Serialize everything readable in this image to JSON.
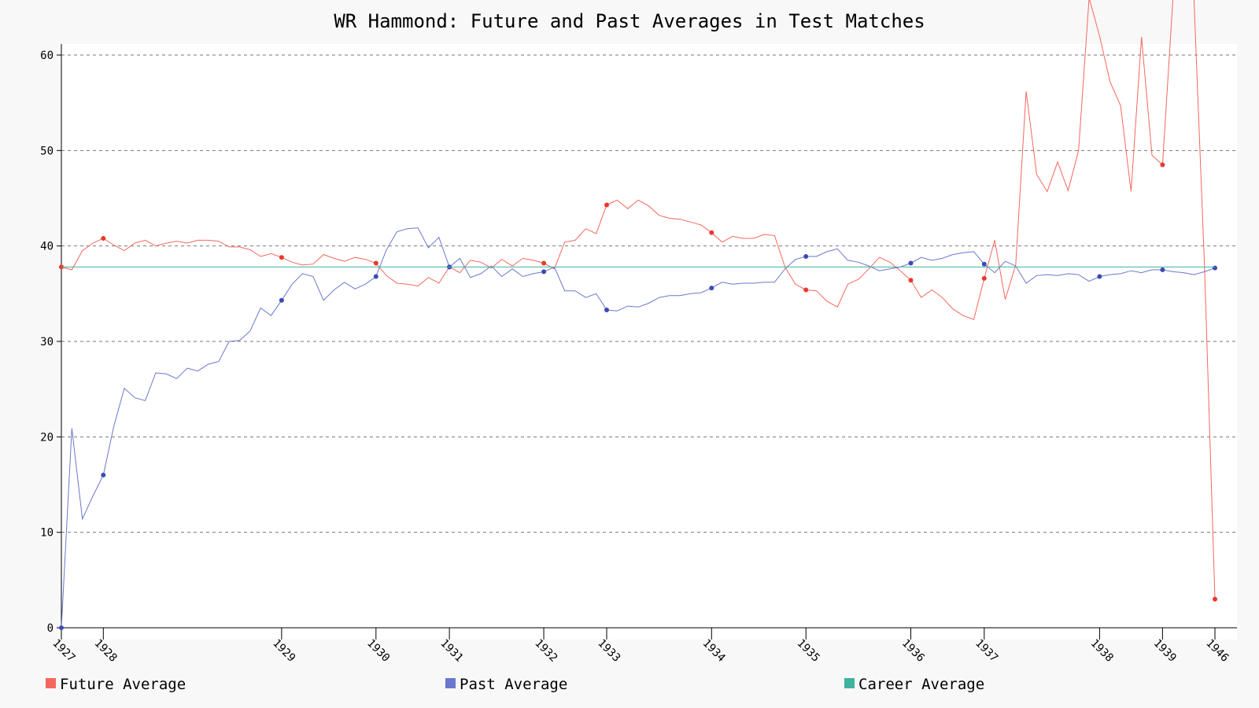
{
  "chart_data": {
    "type": "line",
    "title": "WR Hammond: Future and Past Averages in Test Matches",
    "xlabel": "",
    "ylabel": "",
    "ylim": [
      0,
      61
    ],
    "y_ticks": [
      0,
      10,
      20,
      30,
      40,
      50,
      60
    ],
    "grid": true,
    "legend_position": "bottom",
    "colors": {
      "future": "#f4675f",
      "past": "#6a78cd",
      "career": "#3fb39f"
    },
    "x_tick_labels": [
      {
        "i": 0,
        "label": "1927"
      },
      {
        "i": 4,
        "label": "1928"
      },
      {
        "i": 21,
        "label": "1929"
      },
      {
        "i": 30,
        "label": "1930"
      },
      {
        "i": 37,
        "label": "1931"
      },
      {
        "i": 46,
        "label": "1932"
      },
      {
        "i": 52,
        "label": "1933"
      },
      {
        "i": 62,
        "label": "1934"
      },
      {
        "i": 71,
        "label": "1935"
      },
      {
        "i": 81,
        "label": "1936"
      },
      {
        "i": 88,
        "label": "1937"
      },
      {
        "i": 99,
        "label": "1938"
      },
      {
        "i": 105,
        "label": "1939"
      },
      {
        "i": 110,
        "label": "1946"
      }
    ],
    "series": [
      {
        "name": "Future Average",
        "values": [
          37.8,
          37.5,
          39.5,
          40.3,
          40.8,
          40.1,
          39.5,
          40.3,
          40.6,
          40.0,
          40.3,
          40.5,
          40.3,
          40.6,
          40.6,
          40.5,
          39.9,
          39.9,
          39.6,
          38.9,
          39.2,
          38.8,
          38.3,
          38.0,
          38.1,
          39.1,
          38.7,
          38.4,
          38.8,
          38.6,
          38.2,
          36.9,
          36.1,
          36.0,
          35.8,
          36.7,
          36.1,
          37.8,
          37.2,
          38.5,
          38.3,
          37.7,
          38.6,
          37.9,
          38.7,
          38.5,
          38.2,
          37.6,
          40.4,
          40.6,
          41.8,
          41.3,
          44.3,
          44.8,
          43.9,
          44.8,
          44.2,
          43.2,
          42.9,
          42.8,
          42.5,
          42.2,
          41.4,
          40.4,
          41.0,
          40.8,
          40.8,
          41.2,
          41.1,
          37.8,
          36.0,
          35.4,
          35.3,
          34.2,
          33.6,
          36.0,
          36.5,
          37.6,
          38.8,
          38.3,
          37.4,
          36.4,
          34.6,
          35.4,
          34.6,
          33.4,
          32.7,
          32.3,
          36.6,
          40.6,
          34.4,
          38.0,
          56.2,
          47.5,
          45.7,
          48.8,
          45.8,
          50.0,
          66.0,
          62.0,
          57.2,
          54.7,
          45.7,
          61.9,
          49.5,
          48.5,
          66.0,
          66.0,
          66.0,
          38.0,
          3.0
        ],
        "marker_indices": [
          0,
          4,
          21,
          30,
          37,
          46,
          52,
          62,
          71,
          81,
          88,
          105,
          110
        ]
      },
      {
        "name": "Past Average",
        "values": [
          0.0,
          20.9,
          11.4,
          13.8,
          16.0,
          21.1,
          25.1,
          24.1,
          23.8,
          26.7,
          26.6,
          26.1,
          27.2,
          26.9,
          27.6,
          27.9,
          30.0,
          30.1,
          31.1,
          33.5,
          32.7,
          34.3,
          36.0,
          37.1,
          36.8,
          34.3,
          35.4,
          36.2,
          35.5,
          36.0,
          36.8,
          39.6,
          41.5,
          41.8,
          41.9,
          39.8,
          40.9,
          37.8,
          38.7,
          36.7,
          37.1,
          37.9,
          36.8,
          37.6,
          36.8,
          37.1,
          37.3,
          37.8,
          35.3,
          35.3,
          34.6,
          35.0,
          33.3,
          33.2,
          33.7,
          33.6,
          34.0,
          34.6,
          34.8,
          34.8,
          35.0,
          35.1,
          35.6,
          36.2,
          36.0,
          36.1,
          36.1,
          36.2,
          36.2,
          37.6,
          38.6,
          38.9,
          38.9,
          39.4,
          39.7,
          38.5,
          38.3,
          37.9,
          37.4,
          37.6,
          37.8,
          38.2,
          38.8,
          38.5,
          38.7,
          39.1,
          39.3,
          39.4,
          38.1,
          37.2,
          38.4,
          37.9,
          36.1,
          36.9,
          37.0,
          36.9,
          37.1,
          37.0,
          36.3,
          36.8,
          37.0,
          37.1,
          37.4,
          37.2,
          37.5,
          37.5,
          37.3,
          37.2,
          37.0,
          37.3,
          37.7
        ],
        "marker_indices": [
          0,
          4,
          21,
          30,
          37,
          46,
          52,
          62,
          71,
          81,
          88,
          99,
          105,
          110
        ]
      },
      {
        "name": "Career Average",
        "values": [
          37.8,
          37.8
        ]
      }
    ]
  }
}
